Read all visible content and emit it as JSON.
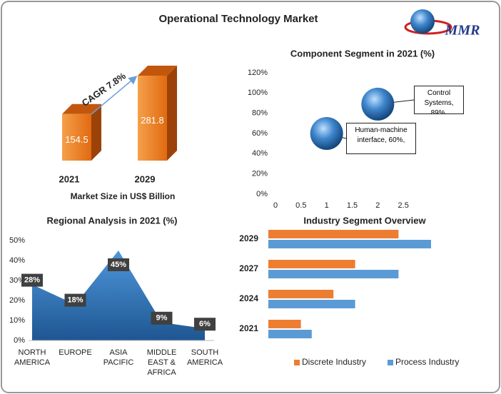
{
  "title": "Operational Technology Market",
  "logo": "MMR",
  "chart_data": [
    {
      "type": "bar",
      "categories": [
        "2021",
        "2029"
      ],
      "values": [
        154.5,
        281.8
      ],
      "color": "#e8701a",
      "annotation": "CAGR 7.8%",
      "xlabel": "Market Size in US$ Billion"
    },
    {
      "type": "scatter",
      "title": "Component Segment in 2021 (%)",
      "x": [
        1,
        2
      ],
      "values": [
        60,
        89
      ],
      "value_labels": [
        "Human-machine interface, 60%,",
        "Control Systems, 89%,"
      ],
      "color": "#2e75b6",
      "xlim": [
        0,
        3
      ],
      "xticks": [
        0,
        0.5,
        1,
        1.5,
        2,
        2.5
      ],
      "ylim": [
        0,
        120
      ],
      "yticks": [
        {
          "value": 0,
          "label": "0%"
        },
        {
          "value": 20,
          "label": "20%"
        },
        {
          "value": 40,
          "label": "40%"
        },
        {
          "value": 60,
          "label": "60%"
        },
        {
          "value": 80,
          "label": "80%"
        },
        {
          "value": 100,
          "label": "100%"
        },
        {
          "value": 120,
          "label": "120%"
        }
      ]
    },
    {
      "type": "area",
      "title": "Regional Analysis in 2021 (%)",
      "categories": [
        "NORTH AMERICA",
        "EUROPE",
        "ASIA PACIFIC",
        "MIDDLE EAST & AFRICA",
        "SOUTH AMERICA"
      ],
      "values": [
        28,
        18,
        45,
        9,
        6
      ],
      "value_labels": [
        "28%",
        "18%",
        "45%",
        "9%",
        "6%"
      ],
      "color": "#3a7fc1",
      "ylim": [
        0,
        50
      ],
      "yticks": [
        {
          "value": 0,
          "label": "0%"
        },
        {
          "value": 10,
          "label": "10%"
        },
        {
          "value": 20,
          "label": "20%"
        },
        {
          "value": 30,
          "label": "30%"
        },
        {
          "value": 40,
          "label": "40%"
        },
        {
          "value": 50,
          "label": "50%"
        }
      ]
    },
    {
      "type": "hbar",
      "title": "Industry Segment Overview",
      "categories": [
        "2021",
        "2024",
        "2027",
        "2029"
      ],
      "series": [
        {
          "name": "Discrete Industry",
          "color": "#ed7d31",
          "values": [
            15,
            30,
            40,
            60
          ]
        },
        {
          "name": "Process Industry",
          "color": "#5b9bd5",
          "values": [
            20,
            40,
            60,
            75
          ]
        }
      ],
      "legend": "bottom"
    }
  ]
}
